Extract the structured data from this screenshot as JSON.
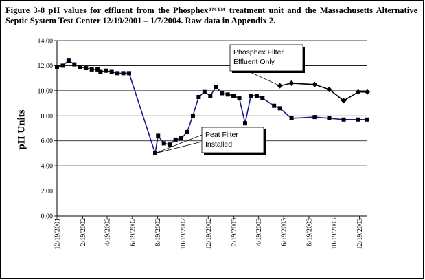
{
  "caption": "Figure 3-8 pH values for effluent from the Phosphex™™ treatment unit and the Massachusetts Alternative Septic System Test Center 12/19/2001 – 1/7/2004. Raw data in Appendix 2.",
  "chart_data": {
    "type": "line",
    "title": "",
    "ylabel": "pH Units",
    "xlabel": "",
    "ylim": [
      0,
      14
    ],
    "yticks": [
      "0.00",
      "2.00",
      "4.00",
      "6.00",
      "8.00",
      "10.00",
      "12.00",
      "14.00"
    ],
    "xticks": [
      "12/19/2001",
      "2/19/2002",
      "4/19/2002",
      "6/19/2002",
      "8/19/2002",
      "10/19/2002",
      "12/19/2002",
      "2/19/2003",
      "4/19/2003",
      "6/19/2003",
      "8/19/2003",
      "10/19/2003",
      "12/19/2003"
    ],
    "grid": "horizontal",
    "series": [
      {
        "name": "",
        "color": "#1a1a8c",
        "marker": "square",
        "x": [
          "2001-12-19",
          "2002-01-02",
          "2002-01-16",
          "2002-01-30",
          "2002-02-13",
          "2002-02-27",
          "2002-03-13",
          "2002-03-27",
          "2002-04-03",
          "2002-04-17",
          "2002-04-30",
          "2002-05-14",
          "2002-05-28",
          "2002-06-11",
          "2002-08-13",
          "2002-08-20",
          "2002-09-03",
          "2002-09-17",
          "2002-10-01",
          "2002-10-15",
          "2002-10-29",
          "2002-11-12",
          "2002-11-26",
          "2002-12-10",
          "2002-12-24",
          "2003-01-07",
          "2003-01-21",
          "2003-02-04",
          "2003-02-18",
          "2003-03-04",
          "2003-03-18",
          "2003-04-01",
          "2003-04-15",
          "2003-04-29",
          "2003-05-27",
          "2003-06-10",
          "2003-07-08",
          "2003-09-02",
          "2003-10-07",
          "2003-11-11",
          "2003-12-16",
          "2004-01-07"
        ],
        "y": [
          11.9,
          12.0,
          12.4,
          12.1,
          11.9,
          11.8,
          11.7,
          11.7,
          11.5,
          11.6,
          11.5,
          11.4,
          11.4,
          11.4,
          5.0,
          6.4,
          5.8,
          5.7,
          6.1,
          6.2,
          6.7,
          8.0,
          9.5,
          9.9,
          9.6,
          10.3,
          9.8,
          9.7,
          9.6,
          9.4,
          7.4,
          9.6,
          9.6,
          9.4,
          8.8,
          8.6,
          7.8,
          7.9,
          7.8,
          7.7,
          7.7,
          7.7
        ]
      },
      {
        "name": "",
        "color": "#000000",
        "marker": "diamond",
        "x": [
          "2003-06-10",
          "2003-07-08",
          "2003-09-02",
          "2003-10-07",
          "2003-11-11",
          "2003-12-16",
          "2004-01-07"
        ],
        "y": [
          10.4,
          10.6,
          10.5,
          10.1,
          9.2,
          9.9,
          9.9
        ]
      }
    ],
    "annotations": [
      {
        "lines": [
          "Phosphex Filter",
          "Effluent Only"
        ]
      },
      {
        "lines": [
          "Peat Filter",
          "Installed"
        ]
      }
    ]
  }
}
